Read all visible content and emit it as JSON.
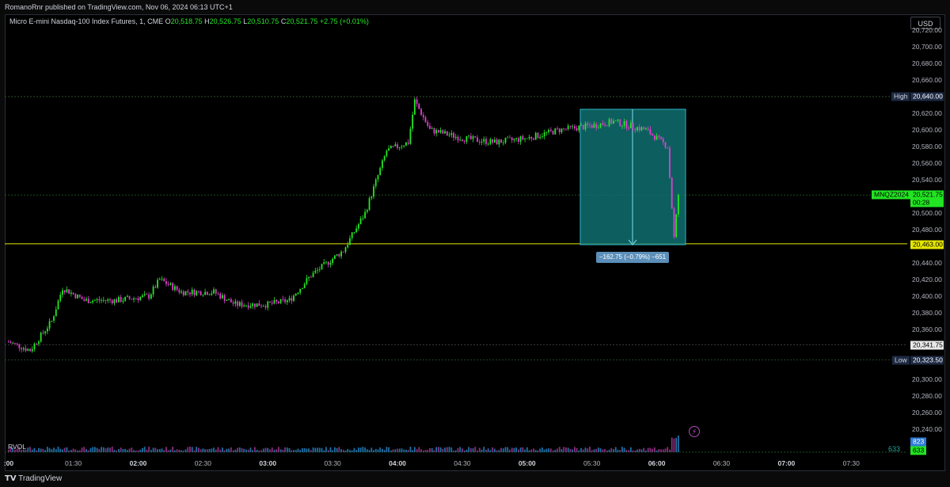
{
  "header": {
    "publish_line": "RomanoRnr published on TradingView.com, Nov 06, 2024 06:13 UTC+1"
  },
  "legend": {
    "symbol": "Micro E-mini Nasdaq-100 Index Futures, 1, CME",
    "o_label": "O",
    "o": "20,518.75",
    "h_label": "H",
    "h": "20,526.75",
    "l_label": "L",
    "l": "20,510.75",
    "c_label": "C",
    "c": "20,521.75",
    "change": "+2.75 (+0.01%)"
  },
  "currency_button": "USD",
  "price_axis": {
    "ticks": [
      "20,720.00",
      "20,700.00",
      "20,680.00",
      "20,660.00",
      "20,620.00",
      "20,600.00",
      "20,580.00",
      "20,560.00",
      "20,540.00",
      "20,500.00",
      "20,480.00",
      "20,440.00",
      "20,420.00",
      "20,400.00",
      "20,380.00",
      "20,360.00",
      "20,300.00",
      "20,280.00",
      "20,260.00",
      "20,240.00"
    ],
    "high": {
      "tag": "High",
      "value": "20,640.00"
    },
    "low": {
      "tag": "Low",
      "value": "20,323.50"
    },
    "current": {
      "tag": "MNQZ2024",
      "value": "20,521.75",
      "countdown": "00:28"
    },
    "line_level": "20,463.00",
    "prev_level": "20,341.75"
  },
  "time_axis": {
    "ticks": [
      {
        "label": ":00",
        "bold": true
      },
      {
        "label": "01:30",
        "bold": false
      },
      {
        "label": "02:00",
        "bold": true
      },
      {
        "label": "02:30",
        "bold": false
      },
      {
        "label": "03:00",
        "bold": true
      },
      {
        "label": "03:30",
        "bold": false
      },
      {
        "label": "04:00",
        "bold": true
      },
      {
        "label": "04:30",
        "bold": false
      },
      {
        "label": "05:00",
        "bold": true
      },
      {
        "label": "05:30",
        "bold": false
      },
      {
        "label": "06:00",
        "bold": true
      },
      {
        "label": "06:30",
        "bold": false
      },
      {
        "label": "07:00",
        "bold": true
      },
      {
        "label": "07:30",
        "bold": false
      }
    ]
  },
  "measure": {
    "label": "−162.75 (−0.79%) −651"
  },
  "volume": {
    "indicator": "RVOL",
    "value_right": "633",
    "tag_top": "823",
    "tag_bottom": "633"
  },
  "footer": {
    "brand": "TradingView"
  },
  "colors": {
    "up": "#26e626",
    "down": "#e03fd0",
    "measure_fill": "#0f6e6e",
    "measure_border": "#2bb6c9",
    "level_line": "#e6e600"
  },
  "chart_data": {
    "type": "candlestick",
    "title": "Micro E-mini Nasdaq-100 Index Futures, 1, CME",
    "x_range": [
      "00:59",
      "07:45"
    ],
    "ylim": [
      20220,
      20730
    ],
    "path_close": [
      [
        "01:00",
        20345
      ],
      [
        "01:10",
        20335
      ],
      [
        "01:20",
        20370
      ],
      [
        "01:25",
        20410
      ],
      [
        "01:35",
        20395
      ],
      [
        "01:50",
        20395
      ],
      [
        "02:05",
        20400
      ],
      [
        "02:10",
        20420
      ],
      [
        "02:20",
        20405
      ],
      [
        "02:35",
        20405
      ],
      [
        "02:45",
        20390
      ],
      [
        "03:00",
        20390
      ],
      [
        "03:10",
        20395
      ],
      [
        "03:20",
        20425
      ],
      [
        "03:35",
        20455
      ],
      [
        "03:45",
        20500
      ],
      [
        "03:55",
        20575
      ],
      [
        "04:05",
        20585
      ],
      [
        "04:08",
        20635
      ],
      [
        "04:15",
        20600
      ],
      [
        "04:30",
        20590
      ],
      [
        "04:45",
        20585
      ],
      [
        "05:00",
        20590
      ],
      [
        "05:15",
        20600
      ],
      [
        "05:30",
        20605
      ],
      [
        "05:40",
        20610
      ],
      [
        "05:55",
        20600
      ],
      [
        "06:05",
        20580
      ],
      [
        "06:08",
        20470
      ],
      [
        "06:10",
        20522
      ]
    ]
  }
}
